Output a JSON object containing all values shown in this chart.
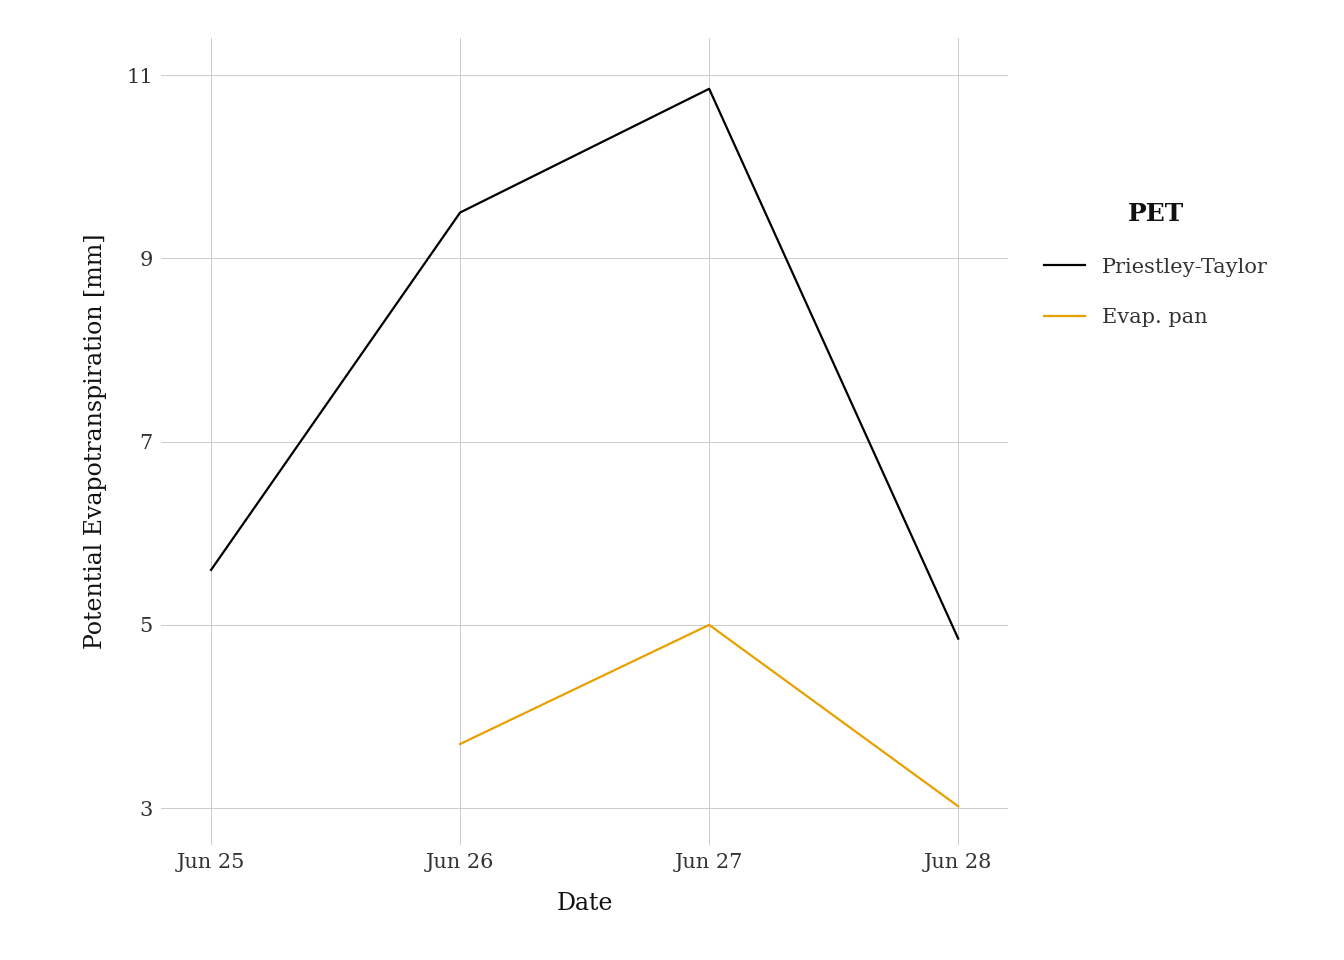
{
  "dates_pt": [
    0,
    1,
    2,
    3
  ],
  "values_pt": [
    5.6,
    9.5,
    10.85,
    4.85
  ],
  "dates_ep": [
    1,
    2,
    3
  ],
  "values_ep": [
    3.7,
    5.0,
    3.02
  ],
  "x_tick_labels": [
    "Jun 25",
    "Jun 26",
    "Jun 27",
    "Jun 28"
  ],
  "x_tick_positions": [
    0,
    1,
    2,
    3
  ],
  "ylabel": "Potential Evapotranspiration [mm]",
  "xlabel": "Date",
  "legend_title": "PET",
  "legend_labels": [
    "Priestley-Taylor",
    "Evap. pan"
  ],
  "color_pt": "#000000",
  "color_ep": "#E8A000",
  "ylim": [
    2.6,
    11.4
  ],
  "yticks": [
    3,
    5,
    7,
    9,
    11
  ],
  "background_color": "#ffffff",
  "grid_color": "#cccccc",
  "line_width": 1.6
}
